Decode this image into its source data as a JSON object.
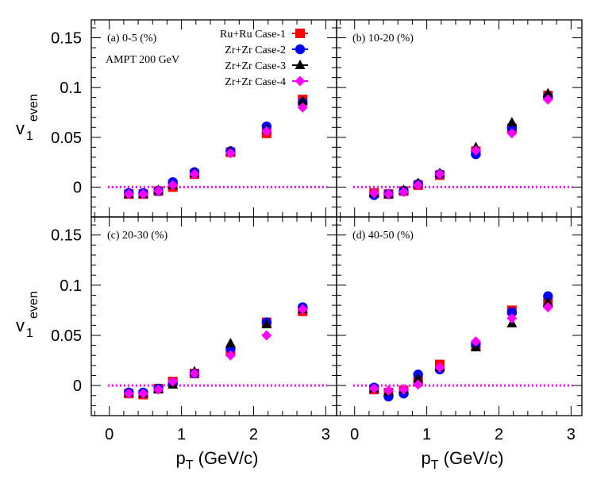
{
  "chart_data": {
    "type": "scatter",
    "xlabel_main": "p",
    "xlabel_sub": "T",
    "xlabel_unit": " (GeV/c)",
    "ylabel_main": "v",
    "ylabel_sub": "1",
    "ylabel_sup": "even",
    "xlim": [
      -0.25,
      3.15
    ],
    "ylim": [
      -0.03,
      0.168
    ],
    "xticks": [
      "0",
      "1",
      "2",
      "3"
    ],
    "xtick_values": [
      0,
      1,
      2,
      3
    ],
    "yticks": [
      "0",
      "0.05",
      "0.1",
      "0.15"
    ],
    "ytick_values": [
      0,
      0.05,
      0.1,
      0.15
    ],
    "x": [
      0.27,
      0.47,
      0.68,
      0.88,
      1.18,
      1.68,
      2.18,
      2.68
    ],
    "reference_line": 0,
    "grid": false,
    "legend_position": "top-right of panel (a)",
    "series_styles": [
      {
        "name": "Ru+Ru Case-1",
        "color": "#ff0000",
        "marker": "square"
      },
      {
        "name": "Zr+Zr Case-2",
        "color": "#0000ff",
        "marker": "circle"
      },
      {
        "name": "Zr+Zr Case-3",
        "color": "#000000",
        "marker": "triangle"
      },
      {
        "name": "Zr+Zr Case-4",
        "color": "#ff00ff",
        "marker": "diamond"
      }
    ],
    "annotation": "AMPT 200 GeV",
    "panels": [
      {
        "label": "(a) 0-5 (%)",
        "series": [
          {
            "name": "Ru+Ru Case-1",
            "values": [
              -0.007,
              -0.007,
              -0.004,
              0.0,
              0.013,
              0.035,
              0.054,
              0.088
            ]
          },
          {
            "name": "Zr+Zr Case-2",
            "values": [
              -0.006,
              -0.006,
              -0.004,
              0.005,
              0.015,
              0.036,
              0.061,
              0.085
            ]
          },
          {
            "name": "Zr+Zr Case-3",
            "values": [
              -0.007,
              -0.007,
              -0.003,
              0.002,
              0.014,
              0.036,
              0.058,
              0.086
            ]
          },
          {
            "name": "Zr+Zr Case-4",
            "values": [
              -0.007,
              -0.007,
              -0.004,
              0.002,
              0.013,
              0.034,
              0.056,
              0.08
            ]
          }
        ]
      },
      {
        "label": "(b) 10-20 (%)",
        "series": [
          {
            "name": "Ru+Ru Case-1",
            "values": [
              -0.006,
              -0.007,
              -0.004,
              0.002,
              0.012,
              0.036,
              0.059,
              0.092
            ]
          },
          {
            "name": "Zr+Zr Case-2",
            "values": [
              -0.008,
              -0.007,
              -0.004,
              0.003,
              0.013,
              0.033,
              0.059,
              0.091
            ]
          },
          {
            "name": "Zr+Zr Case-3",
            "values": [
              -0.006,
              -0.007,
              -0.003,
              0.004,
              0.014,
              0.04,
              0.065,
              0.094
            ]
          },
          {
            "name": "Zr+Zr Case-4",
            "values": [
              -0.006,
              -0.007,
              -0.005,
              0.002,
              0.013,
              0.037,
              0.054,
              0.088
            ]
          }
        ]
      },
      {
        "label": "(c) 20-30 (%)",
        "series": [
          {
            "name": "Ru+Ru Case-1",
            "values": [
              -0.008,
              -0.009,
              -0.003,
              0.004,
              0.012,
              0.034,
              0.063,
              0.074
            ]
          },
          {
            "name": "Zr+Zr Case-2",
            "values": [
              -0.007,
              -0.007,
              -0.003,
              0.002,
              0.012,
              0.037,
              0.063,
              0.078
            ]
          },
          {
            "name": "Zr+Zr Case-3",
            "values": [
              -0.007,
              -0.008,
              -0.004,
              0.001,
              0.014,
              0.042,
              0.061,
              0.076
            ]
          },
          {
            "name": "Zr+Zr Case-4",
            "values": [
              -0.008,
              -0.008,
              -0.004,
              0.004,
              0.012,
              0.03,
              0.05,
              0.076
            ]
          }
        ]
      },
      {
        "label": "(d) 40-50 (%)",
        "series": [
          {
            "name": "Ru+Ru Case-1",
            "values": [
              -0.004,
              -0.007,
              -0.005,
              0.004,
              0.021,
              0.04,
              0.075,
              0.082
            ]
          },
          {
            "name": "Zr+Zr Case-2",
            "values": [
              -0.002,
              -0.011,
              -0.008,
              0.011,
              0.016,
              0.041,
              0.073,
              0.089
            ]
          },
          {
            "name": "Zr+Zr Case-3",
            "values": [
              -0.003,
              -0.006,
              -0.004,
              0.007,
              0.018,
              0.038,
              0.062,
              0.083
            ]
          },
          {
            "name": "Zr+Zr Case-4",
            "values": [
              -0.003,
              -0.005,
              -0.004,
              0.001,
              0.018,
              0.044,
              0.067,
              0.078
            ]
          }
        ]
      }
    ]
  }
}
